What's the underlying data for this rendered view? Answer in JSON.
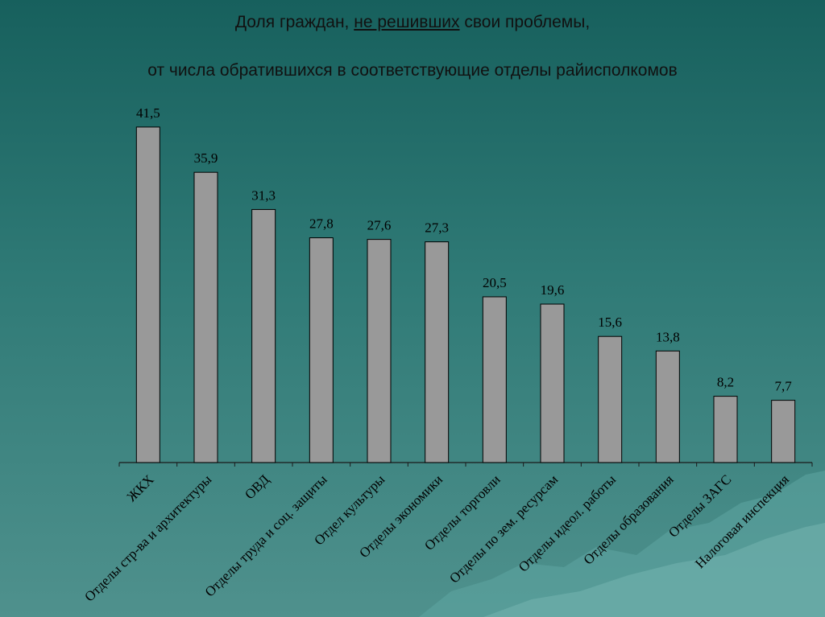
{
  "chart_data": {
    "type": "bar",
    "title_parts": [
      "Доля граждан,",
      "не решивших",
      "свои проблемы,"
    ],
    "subtitle": "от числа обратившихся в соответствующие отделы райисполкомов",
    "categories": [
      "ЖКХ",
      "Отделы стр-ва и архитектуры",
      "ОВД",
      "Отделы труда и соц. защиты",
      "Отдел культуры",
      "Отделы экономики",
      "Отделы торговли",
      "Отделы по зем. ресурсам",
      "Отделы идеол. работы",
      "Отделы образования",
      "Отделы ЗАГС",
      "Налоговая инспекция"
    ],
    "values": [
      41.5,
      35.9,
      31.3,
      27.8,
      27.6,
      27.3,
      20.5,
      19.6,
      15.6,
      13.8,
      8.2,
      7.7
    ],
    "value_labels": [
      "41,5",
      "35,9",
      "31,3",
      "27,8",
      "27,6",
      "27,3",
      "20,5",
      "19,6",
      "15,6",
      "13,8",
      "8,2",
      "7,7"
    ],
    "color": "#999999"
  }
}
